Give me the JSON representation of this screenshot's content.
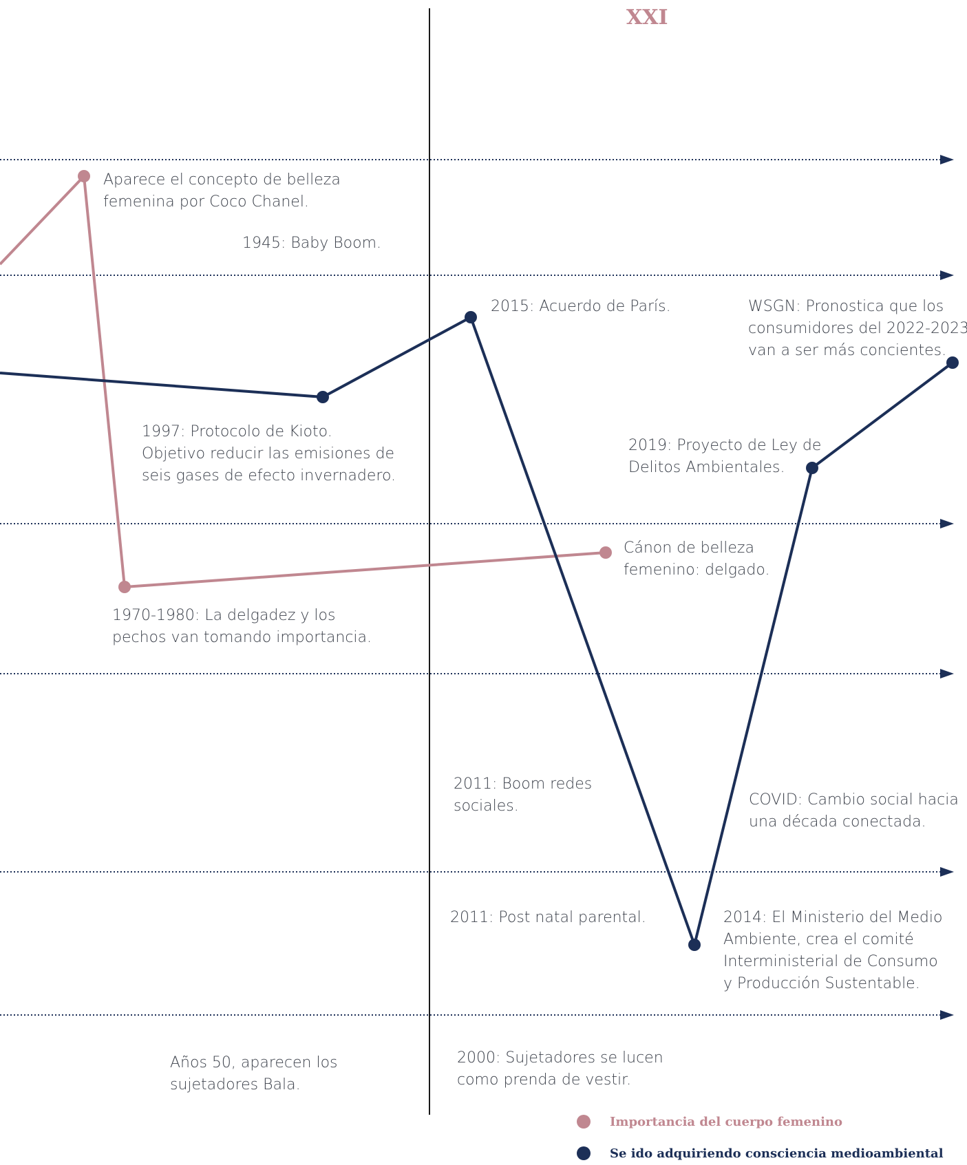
{
  "header": {
    "century": "XXI"
  },
  "colors": {
    "pink": "#c08790",
    "navy": "#1c2f57",
    "axis": "#1a1a1a",
    "grid": "#1c2f57",
    "text": "#3d424c"
  },
  "events": {
    "coco_chanel": "Aparece el concepto de belleza\nfemenina por Coco Chanel.",
    "baby_boom": "1945: Baby Boom.",
    "paris": "2015: Acuerdo de París.",
    "wsgn": "WSGN: Pronostica que los\nconsumidores del 2022-2023\nvan a ser más concientes.",
    "kioto": "1997: Protocolo de Kioto.\nObjetivo reducir las emisiones de\nseis gases de efecto invernadero.",
    "ley": "2019: Proyecto de Ley de\nDelitos Ambientales.",
    "canon": "Cánon de belleza\nfemenino: delgado.",
    "delgadez": "1970-1980: La delgadez y los\npechos van tomando importancia.",
    "redes": "2011: Boom redes\nsociales.",
    "covid": "COVID: Cambio social hacia\nuna década conectada.",
    "postnatal": "2011: Post natal parental.",
    "ministerio": "2014: El Ministerio del Medio\nAmbiente, crea el comité\nInterministerial de Consumo\ny Producción Sustentable.",
    "bala": "Años 50, aparecen los\nsujetadores Bala.",
    "sujetadores": "2000: Sujetadores se lucen\ncomo prenda de vestir."
  },
  "legend": [
    {
      "label": "Importancia del cuerpo femenino",
      "color": "#c08790"
    },
    {
      "label": "Se ido adquiriendo consciencia medioambiental",
      "color": "#1c2f57"
    }
  ]
}
